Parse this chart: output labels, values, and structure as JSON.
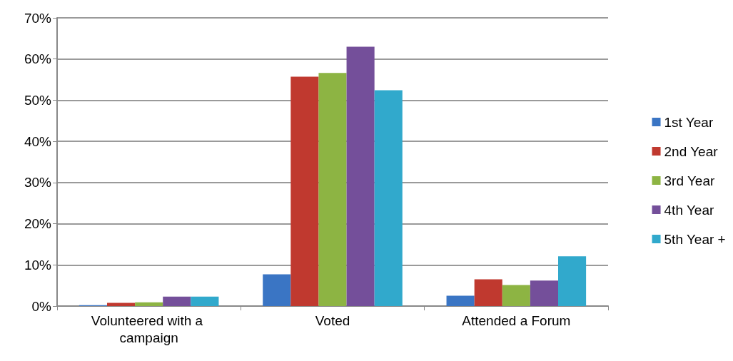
{
  "chart_data": {
    "type": "bar",
    "categories": [
      "Volunteered with a campaign",
      "Voted",
      "Attended a Forum"
    ],
    "series": [
      {
        "name": "1st Year",
        "color": "#3a75c4",
        "values": [
          0.2,
          7.7,
          2.5
        ]
      },
      {
        "name": "2nd Year",
        "color": "#c0392f",
        "values": [
          0.8,
          55.7,
          6.5
        ]
      },
      {
        "name": "3rd Year",
        "color": "#8db443",
        "values": [
          0.9,
          56.6,
          5.1
        ]
      },
      {
        "name": "4th Year",
        "color": "#744f9a",
        "values": [
          2.3,
          63.0,
          6.2
        ]
      },
      {
        "name": "5th Year +",
        "color": "#31a9cc",
        "values": [
          2.3,
          52.4,
          12.1
        ]
      }
    ],
    "ylim": [
      0,
      70
    ],
    "yticks": [
      {
        "value": 0,
        "label": "0%"
      },
      {
        "value": 10,
        "label": "10%"
      },
      {
        "value": 20,
        "label": "20%"
      },
      {
        "value": 30,
        "label": "30%"
      },
      {
        "value": 40,
        "label": "40%"
      },
      {
        "value": 50,
        "label": "50%"
      },
      {
        "value": 60,
        "label": "60%"
      },
      {
        "value": 70,
        "label": "70%"
      }
    ],
    "grid": "y",
    "legend": "right"
  }
}
